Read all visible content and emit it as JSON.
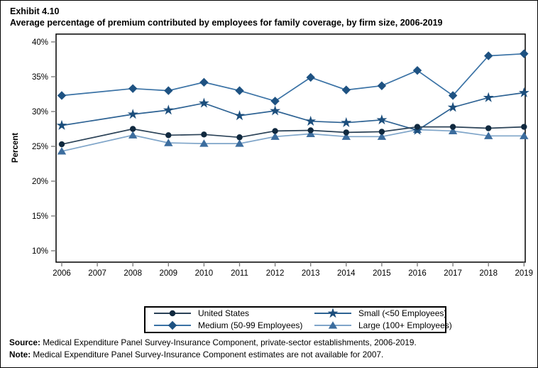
{
  "title": {
    "exhibit": "Exhibit 4.10",
    "line": "Average percentage of premium contributed by employees for family coverage, by firm size, 2006-2019"
  },
  "chart_data": {
    "type": "line",
    "title": "Average percentage of premium contributed by employees for family coverage, by firm size, 2006-2019",
    "ylabel": "Percent",
    "xlabel": "",
    "ylim": [
      10,
      40
    ],
    "ytick_suffix": "%",
    "yticks": [
      40,
      35,
      30,
      25,
      20,
      15,
      10
    ],
    "xticks": [
      2006,
      2007,
      2008,
      2009,
      2010,
      2011,
      2012,
      2013,
      2014,
      2015,
      2016,
      2017,
      2018,
      2019
    ],
    "missing_years": [
      2007
    ],
    "grid": false,
    "legend_position": "bottom",
    "x": [
      2006,
      2008,
      2009,
      2010,
      2011,
      2012,
      2013,
      2014,
      2015,
      2016,
      2017,
      2018,
      2019
    ],
    "series": [
      {
        "name": "United States",
        "marker": "circle",
        "line_color": "#2B4257",
        "marker_color": "#10293F",
        "values": [
          25.3,
          27.5,
          26.6,
          26.7,
          26.3,
          27.2,
          27.3,
          27.0,
          27.1,
          27.8,
          27.8,
          27.6,
          27.8
        ]
      },
      {
        "name": "Small (<50 Employees)",
        "marker": "star",
        "line_color": "#2D6293",
        "marker_color": "#1C4E7C",
        "values": [
          28.0,
          29.6,
          30.2,
          31.2,
          29.4,
          30.1,
          28.6,
          28.4,
          28.8,
          27.3,
          30.6,
          32.0,
          32.7
        ]
      },
      {
        "name": "Medium (50-99 Employees)",
        "marker": "diamond",
        "line_color": "#3A72A5",
        "marker_color": "#1E5282",
        "values": [
          32.3,
          33.3,
          33.0,
          34.2,
          33.0,
          31.5,
          34.9,
          33.1,
          33.7,
          35.9,
          32.3,
          38.0,
          38.3
        ]
      },
      {
        "name": "Large (100+ Employees)",
        "marker": "triangle",
        "line_color": "#7FA5C9",
        "marker_color": "#3C6D9E",
        "values": [
          24.3,
          26.6,
          25.5,
          25.4,
          25.4,
          26.4,
          26.8,
          26.4,
          26.4,
          27.4,
          27.2,
          26.5,
          26.5
        ]
      }
    ]
  },
  "legend": {
    "entries": [
      {
        "label": "United States",
        "series": 0
      },
      {
        "label": "Small (<50 Employees)",
        "series": 1
      },
      {
        "label": "Medium (50-99 Employees)",
        "series": 2
      },
      {
        "label": "Large (100+ Employees)",
        "series": 3
      }
    ]
  },
  "footer": {
    "source_label": "Source:",
    "source_text": " Medical Expenditure Panel Survey-Insurance Component, private-sector establishments, 2006-2019.",
    "note_label": "Note:",
    "note_text": " Medical Expenditure Panel Survey-Insurance Component estimates are not available for 2007."
  }
}
